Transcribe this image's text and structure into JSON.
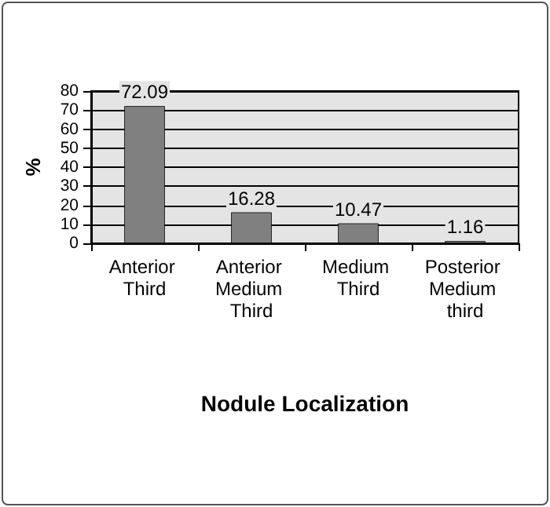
{
  "chart_data": {
    "type": "bar",
    "xlabel": "Nodule Localization",
    "ylabel": "%",
    "categories": [
      "Anterior Third",
      "Anterior Medium Third",
      "Medium Third",
      "Posterior Medium third"
    ],
    "values": [
      72.09,
      16.28,
      10.47,
      1.16
    ],
    "color": "#808080",
    "ylim": [
      0,
      80
    ],
    "yticks": [
      0,
      10,
      20,
      30,
      40,
      50,
      60,
      70,
      80
    ],
    "grid": "y",
    "data_labels": true
  }
}
